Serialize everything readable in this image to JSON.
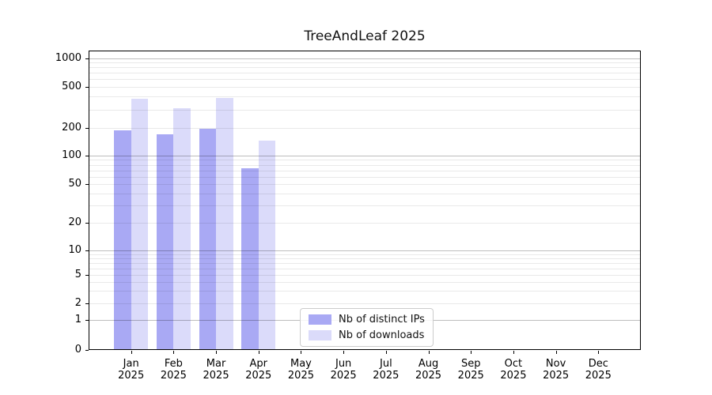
{
  "chart_data": {
    "type": "bar",
    "title": "TreeAndLeaf 2025",
    "x": {
      "months": [
        "Jan",
        "Feb",
        "Mar",
        "Apr",
        "May",
        "Jun",
        "Jul",
        "Aug",
        "Sep",
        "Oct",
        "Nov",
        "Dec"
      ],
      "year": "2025"
    },
    "series": [
      {
        "name": "Nb of distinct IPs",
        "color": "#a9a9f4",
        "values": [
          190,
          170,
          197,
          73,
          null,
          null,
          null,
          null,
          null,
          null,
          null,
          null
        ]
      },
      {
        "name": "Nb of downloads",
        "color": "#dbdbfa",
        "values": [
          380,
          310,
          385,
          145,
          null,
          null,
          null,
          null,
          null,
          null,
          null,
          null
        ]
      }
    ],
    "yscale": "symlog",
    "yticks": [
      0,
      1,
      2,
      5,
      10,
      20,
      50,
      100,
      200,
      500,
      1000
    ],
    "ylim": [
      0,
      1000
    ],
    "xlabel": "",
    "ylabel": "",
    "grid": true,
    "legend_position": "lower center",
    "colors": {
      "grid_major": "rgba(0,0,0,0.26)",
      "grid_minor": "rgba(0,0,0,0.085)",
      "axis": "#000000",
      "background": "#ffffff"
    }
  }
}
